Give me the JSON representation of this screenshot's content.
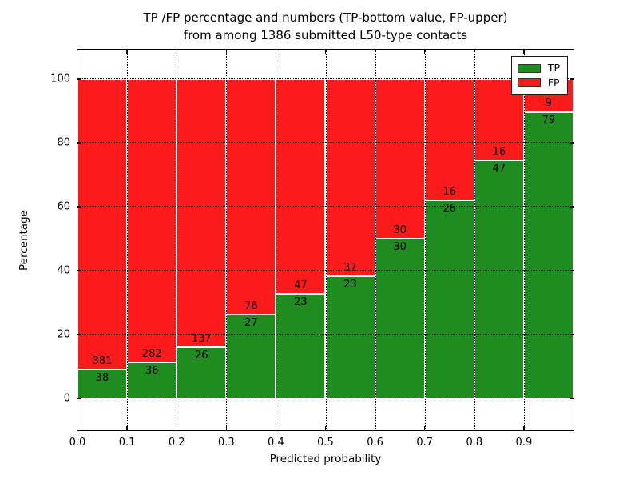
{
  "title": {
    "line1": "TP /FP percentage and numbers (TP-bottom value, FP-upper)",
    "line2": "from among 1386 submitted L50-type contacts"
  },
  "chart_data": {
    "type": "bar",
    "stacked": true,
    "title": "TP /FP percentage and numbers (TP-bottom value, FP-upper) from among 1386 submitted L50-type contacts",
    "xlabel": "Predicted probability",
    "ylabel": "Percentage",
    "total_contacts": 1386,
    "bin_edges": [
      0.0,
      0.1,
      0.2,
      0.3,
      0.4,
      0.5,
      0.6,
      0.7,
      0.8,
      0.9,
      1.0
    ],
    "xtick_labels": [
      "0.0",
      "0.1",
      "0.2",
      "0.3",
      "0.4",
      "0.5",
      "0.6",
      "0.7",
      "0.8",
      "0.9"
    ],
    "ytick_labels": [
      "0",
      "20",
      "40",
      "60",
      "80",
      "100"
    ],
    "ytick_values": [
      0,
      20,
      40,
      60,
      80,
      100
    ],
    "xlim": [
      0.0,
      1.0
    ],
    "ylim": [
      -10,
      109
    ],
    "grid": "dotted, both axes, drawn over bars",
    "bar_edge_color": "#ffffff",
    "series": [
      {
        "name": "TP",
        "color": "#1e8c1e",
        "counts": [
          38,
          36,
          26,
          27,
          23,
          23,
          30,
          26,
          47,
          79
        ],
        "percent": [
          9.07,
          11.32,
          15.95,
          26.21,
          32.86,
          38.33,
          50.0,
          61.9,
          74.6,
          89.77
        ]
      },
      {
        "name": "FP",
        "color": "#fc1b1b",
        "counts": [
          381,
          282,
          137,
          76,
          47,
          37,
          30,
          16,
          16,
          9
        ],
        "percent": [
          90.93,
          88.68,
          84.05,
          73.79,
          67.14,
          61.67,
          50.0,
          38.1,
          25.4,
          10.23
        ]
      }
    ],
    "legend": {
      "position": "upper right",
      "entries": [
        {
          "label": "TP",
          "color": "#1e8c1e"
        },
        {
          "label": "FP",
          "color": "#fc1b1b"
        }
      ]
    }
  }
}
